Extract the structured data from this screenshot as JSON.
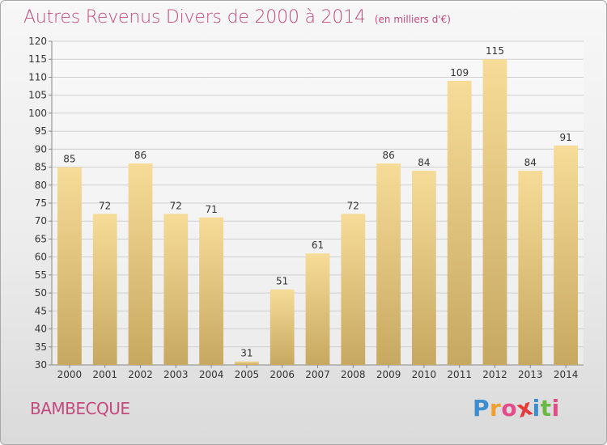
{
  "title": "Autres Revenus Divers de 2000 à 2014",
  "unit_note": "(en milliers d'€)",
  "town": "BAMBECQUE",
  "logo": {
    "letters": [
      "P",
      "r",
      "o",
      "x",
      "i",
      "t",
      "i"
    ],
    "colors": [
      "#3b8fd0",
      "#f0a030",
      "#e44b8a",
      "#e43a3a",
      "#3b8fd0",
      "#6cb844",
      "#e44b8a"
    ]
  },
  "colors": {
    "title": "#c24a7f",
    "bar_top": "#f6dc98",
    "bar_bottom": "#c7a860",
    "grid": "#cfcfcf",
    "axis": "#888888"
  },
  "chart_data": {
    "type": "bar",
    "categories": [
      "2000",
      "2001",
      "2002",
      "2003",
      "2004",
      "2005",
      "2006",
      "2007",
      "2008",
      "2009",
      "2010",
      "2011",
      "2012",
      "2013",
      "2014"
    ],
    "values": [
      85,
      72,
      86,
      72,
      71,
      31,
      51,
      61,
      72,
      86,
      84,
      109,
      115,
      84,
      91
    ],
    "value_labels": [
      "85",
      "72",
      "86",
      "72",
      "71",
      "31",
      "51",
      "61",
      "72",
      "86",
      "84",
      "109",
      "115",
      "84",
      "91"
    ],
    "title": "Autres Revenus Divers de 2000 à 2014",
    "xlabel": "",
    "ylabel": "",
    "ylim": [
      30,
      120
    ],
    "yticks": [
      "30",
      "35",
      "40",
      "45",
      "50",
      "55",
      "60",
      "65",
      "70",
      "75",
      "80",
      "85",
      "90",
      "95",
      "100",
      "105",
      "110",
      "115",
      "120"
    ],
    "grid": true,
    "legend": "none"
  }
}
